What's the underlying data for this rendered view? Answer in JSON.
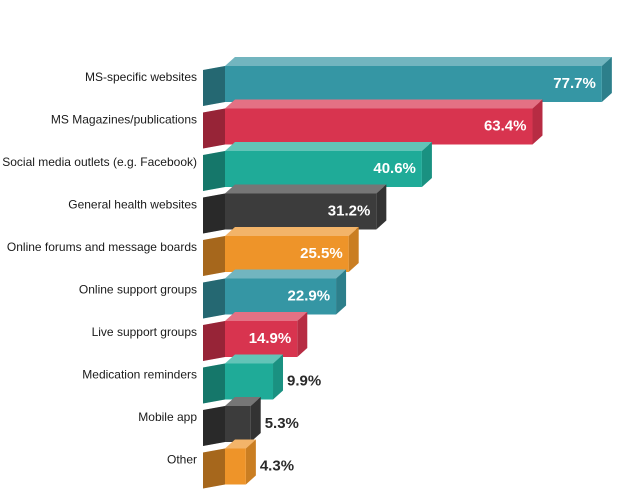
{
  "chart_data": {
    "type": "bar",
    "orientation": "horizontal",
    "categories": [
      "MS-specific websites",
      "MS Magazines/publications",
      "Social media outlets (e.g. Facebook)",
      "General health websites",
      "Online forums and message boards",
      "Online support groups",
      "Live support groups",
      "Medication reminders",
      "Mobile app",
      "Other"
    ],
    "values": [
      77.7,
      63.4,
      40.6,
      31.2,
      25.5,
      22.9,
      14.9,
      9.9,
      5.3,
      4.3
    ],
    "value_labels": [
      "77.7%",
      "63.4%",
      "40.6%",
      "31.2%",
      "25.5%",
      "22.9%",
      "14.9%",
      "9.9%",
      "5.3%",
      "4.3%"
    ],
    "colors": [
      "#3596a4",
      "#d8344f",
      "#1fab98",
      "#3c3c3c",
      "#ee9429",
      "#3596a4",
      "#d8344f",
      "#1fab98",
      "#3c3c3c",
      "#ee9429"
    ]
  }
}
